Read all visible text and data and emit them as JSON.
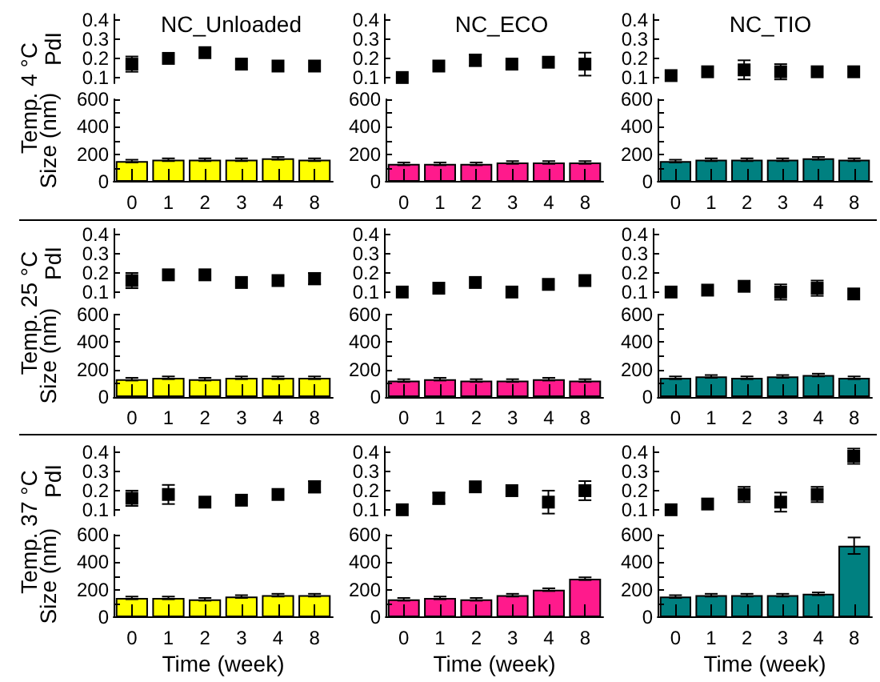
{
  "chart_data": [
    {
      "type": "scatter",
      "title": "NC_Unloaded",
      "ylabel": "PdI",
      "annotations": [
        "Temp. 4 °C"
      ],
      "categories": [
        "0",
        "1",
        "2",
        "3",
        "4",
        "8"
      ],
      "values": [
        0.17,
        0.2,
        0.23,
        0.17,
        0.16,
        0.16
      ],
      "errors": [
        0.04,
        null,
        null,
        null,
        null,
        null
      ],
      "color": "#000000",
      "marker": "square",
      "ylim": [
        0.07,
        0.43
      ],
      "yticks": [
        0.1,
        0.2,
        0.3,
        0.4
      ],
      "tick_labels": "y"
    },
    {
      "type": "scatter",
      "title": "NC_ECO",
      "categories": [
        "0",
        "1",
        "2",
        "3",
        "4",
        "8"
      ],
      "values": [
        0.1,
        0.16,
        0.19,
        0.17,
        0.18,
        0.17
      ],
      "errors": [
        null,
        null,
        0.03,
        null,
        null,
        0.06
      ],
      "color": "#000000",
      "marker": "square",
      "ylim": [
        0.07,
        0.43
      ],
      "yticks": [
        0.1,
        0.2,
        0.3,
        0.4
      ],
      "tick_labels": "y"
    },
    {
      "type": "scatter",
      "title": "NC_TIO",
      "categories": [
        "0",
        "1",
        "2",
        "3",
        "4",
        "8"
      ],
      "values": [
        0.11,
        0.13,
        0.14,
        0.13,
        0.13,
        0.13
      ],
      "errors": [
        null,
        null,
        0.05,
        0.04,
        null,
        null
      ],
      "color": "#000000",
      "marker": "square",
      "ylim": [
        0.07,
        0.43
      ],
      "yticks": [
        0.1,
        0.2,
        0.3,
        0.4
      ],
      "tick_labels": "y"
    },
    {
      "type": "bar",
      "ylabel": "Size (nm)",
      "categories": [
        "0",
        "1",
        "2",
        "3",
        "4",
        "8"
      ],
      "values": [
        150,
        160,
        160,
        160,
        170,
        160
      ],
      "errors": [
        10,
        10,
        10,
        10,
        10,
        10
      ],
      "color": "#ffff00",
      "ylim": [
        0,
        600
      ],
      "yticks": [
        0,
        {
          "value": 100,
          "label": null
        },
        200,
        {
          "value": 300,
          "label": null
        },
        400,
        {
          "value": 500,
          "label": null
        },
        600
      ]
    },
    {
      "type": "bar",
      "categories": [
        "0",
        "1",
        "2",
        "3",
        "4",
        "8"
      ],
      "values": [
        130,
        130,
        130,
        140,
        140,
        140
      ],
      "errors": [
        10,
        10,
        10,
        10,
        10,
        10
      ],
      "color": "#ff1a8c",
      "ylim": [
        0,
        600
      ],
      "yticks": [
        0,
        {
          "value": 100,
          "label": null
        },
        200,
        {
          "value": 300,
          "label": null
        },
        400,
        {
          "value": 500,
          "label": null
        },
        600
      ]
    },
    {
      "type": "bar",
      "categories": [
        "0",
        "1",
        "2",
        "3",
        "4",
        "8"
      ],
      "values": [
        150,
        160,
        160,
        160,
        170,
        160
      ],
      "errors": [
        10,
        10,
        10,
        10,
        10,
        10
      ],
      "color": "#008080",
      "ylim": [
        0,
        600
      ],
      "yticks": [
        0,
        {
          "value": 100,
          "label": null
        },
        200,
        {
          "value": 300,
          "label": null
        },
        400,
        {
          "value": 500,
          "label": null
        },
        600
      ]
    },
    {
      "type": "scatter",
      "ylabel": "PdI",
      "annotations": [
        "Temp. 25 °C"
      ],
      "categories": [
        "0",
        "1",
        "2",
        "3",
        "4",
        "8"
      ],
      "values": [
        0.16,
        0.19,
        0.19,
        0.15,
        0.16,
        0.17
      ],
      "errors": [
        0.04,
        null,
        null,
        null,
        null,
        0.03
      ],
      "color": "#000000",
      "marker": "square",
      "ylim": [
        0.07,
        0.43
      ],
      "yticks": [
        0.1,
        0.2,
        0.3,
        0.4
      ],
      "tick_labels": "y"
    },
    {
      "type": "scatter",
      "categories": [
        "0",
        "1",
        "2",
        "3",
        "4",
        "8"
      ],
      "values": [
        0.1,
        0.12,
        0.15,
        0.1,
        0.14,
        0.16
      ],
      "errors": [
        null,
        null,
        null,
        null,
        null,
        null
      ],
      "color": "#000000",
      "marker": "square",
      "ylim": [
        0.07,
        0.43
      ],
      "yticks": [
        0.1,
        0.2,
        0.3,
        0.4
      ],
      "tick_labels": "y"
    },
    {
      "type": "scatter",
      "categories": [
        "0",
        "1",
        "2",
        "3",
        "4",
        "8"
      ],
      "values": [
        0.1,
        0.11,
        0.13,
        0.1,
        0.12,
        0.09
      ],
      "errors": [
        null,
        null,
        null,
        0.04,
        0.04,
        null
      ],
      "color": "#000000",
      "marker": "square",
      "ylim": [
        0.07,
        0.43
      ],
      "yticks": [
        0.1,
        0.2,
        0.3,
        0.4
      ],
      "tick_labels": "y"
    },
    {
      "type": "bar",
      "ylabel": "Size (nm)",
      "categories": [
        "0",
        "1",
        "2",
        "3",
        "4",
        "8"
      ],
      "values": [
        130,
        140,
        130,
        140,
        140,
        140
      ],
      "errors": [
        10,
        10,
        10,
        10,
        10,
        10
      ],
      "color": "#ffff00",
      "ylim": [
        0,
        600
      ],
      "yticks": [
        0,
        {
          "value": 100,
          "label": null
        },
        200,
        {
          "value": 300,
          "label": null
        },
        400,
        {
          "value": 500,
          "label": null
        },
        600
      ]
    },
    {
      "type": "bar",
      "categories": [
        "0",
        "1",
        "2",
        "3",
        "4",
        "8"
      ],
      "values": [
        120,
        130,
        120,
        120,
        130,
        120
      ],
      "errors": [
        10,
        10,
        10,
        10,
        10,
        10
      ],
      "color": "#ff1a8c",
      "ylim": [
        0,
        600
      ],
      "yticks": [
        0,
        {
          "value": 100,
          "label": null
        },
        200,
        {
          "value": 300,
          "label": null
        },
        400,
        {
          "value": 500,
          "label": null
        },
        600
      ]
    },
    {
      "type": "bar",
      "categories": [
        "0",
        "1",
        "2",
        "3",
        "4",
        "8"
      ],
      "values": [
        140,
        150,
        140,
        150,
        160,
        140
      ],
      "errors": [
        10,
        10,
        10,
        10,
        10,
        10
      ],
      "color": "#008080",
      "ylim": [
        0,
        600
      ],
      "yticks": [
        0,
        {
          "value": 100,
          "label": null
        },
        200,
        {
          "value": 300,
          "label": null
        },
        400,
        {
          "value": 500,
          "label": null
        },
        600
      ]
    },
    {
      "type": "scatter",
      "ylabel": "PdI",
      "annotations": [
        "Temp. 37 °C"
      ],
      "categories": [
        "0",
        "1",
        "2",
        "3",
        "4",
        "8"
      ],
      "values": [
        0.16,
        0.18,
        0.14,
        0.15,
        0.18,
        0.22
      ],
      "errors": [
        0.04,
        0.05,
        null,
        null,
        null,
        0.03
      ],
      "color": "#000000",
      "marker": "square",
      "ylim": [
        0.07,
        0.43
      ],
      "yticks": [
        0.1,
        0.2,
        0.3,
        0.4
      ],
      "tick_labels": "y"
    },
    {
      "type": "scatter",
      "categories": [
        "0",
        "1",
        "2",
        "3",
        "4",
        "8"
      ],
      "values": [
        0.1,
        0.16,
        0.22,
        0.2,
        0.14,
        0.2
      ],
      "errors": [
        null,
        0.03,
        null,
        null,
        0.06,
        0.05
      ],
      "color": "#000000",
      "marker": "square",
      "ylim": [
        0.07,
        0.43
      ],
      "yticks": [
        0.1,
        0.2,
        0.3,
        0.4
      ],
      "tick_labels": "y"
    },
    {
      "type": "scatter",
      "categories": [
        "0",
        "1",
        "2",
        "3",
        "4",
        "8"
      ],
      "values": [
        0.1,
        0.13,
        0.18,
        0.14,
        0.18,
        0.38
      ],
      "errors": [
        null,
        null,
        0.04,
        0.05,
        0.04,
        0.04
      ],
      "color": "#000000",
      "marker": "square",
      "ylim": [
        0.07,
        0.43
      ],
      "yticks": [
        0.1,
        0.2,
        0.3,
        0.4
      ],
      "tick_labels": "y"
    },
    {
      "type": "bar",
      "ylabel": "Size (nm)",
      "xlabel": "Time (week)",
      "categories": [
        "0",
        "1",
        "2",
        "3",
        "4",
        "8"
      ],
      "values": [
        140,
        140,
        130,
        150,
        160,
        160
      ],
      "errors": [
        10,
        10,
        10,
        10,
        10,
        10
      ],
      "color": "#ffff00",
      "ylim": [
        0,
        600
      ],
      "yticks": [
        0,
        {
          "value": 100,
          "label": null
        },
        200,
        {
          "value": 300,
          "label": null
        },
        400,
        {
          "value": 500,
          "label": null
        },
        600
      ]
    },
    {
      "type": "bar",
      "xlabel": "Time (week)",
      "categories": [
        "0",
        "1",
        "2",
        "3",
        "4",
        "8"
      ],
      "values": [
        130,
        140,
        130,
        160,
        200,
        280
      ],
      "errors": [
        10,
        10,
        10,
        10,
        10,
        10
      ],
      "color": "#ff1a8c",
      "ylim": [
        0,
        600
      ],
      "yticks": [
        0,
        {
          "value": 100,
          "label": null
        },
        200,
        {
          "value": 300,
          "label": null
        },
        400,
        {
          "value": 500,
          "label": null
        },
        600
      ]
    },
    {
      "type": "bar",
      "xlabel": "Time (week)",
      "categories": [
        "0",
        "1",
        "2",
        "3",
        "4",
        "8"
      ],
      "values": [
        150,
        160,
        160,
        160,
        170,
        520
      ],
      "errors": [
        10,
        10,
        10,
        10,
        10,
        60
      ],
      "color": "#008080",
      "ylim": [
        0,
        600
      ],
      "yticks": [
        0,
        {
          "value": 100,
          "label": null
        },
        200,
        {
          "value": 300,
          "label": null
        },
        400,
        {
          "value": 500,
          "label": null
        },
        600
      ]
    }
  ]
}
